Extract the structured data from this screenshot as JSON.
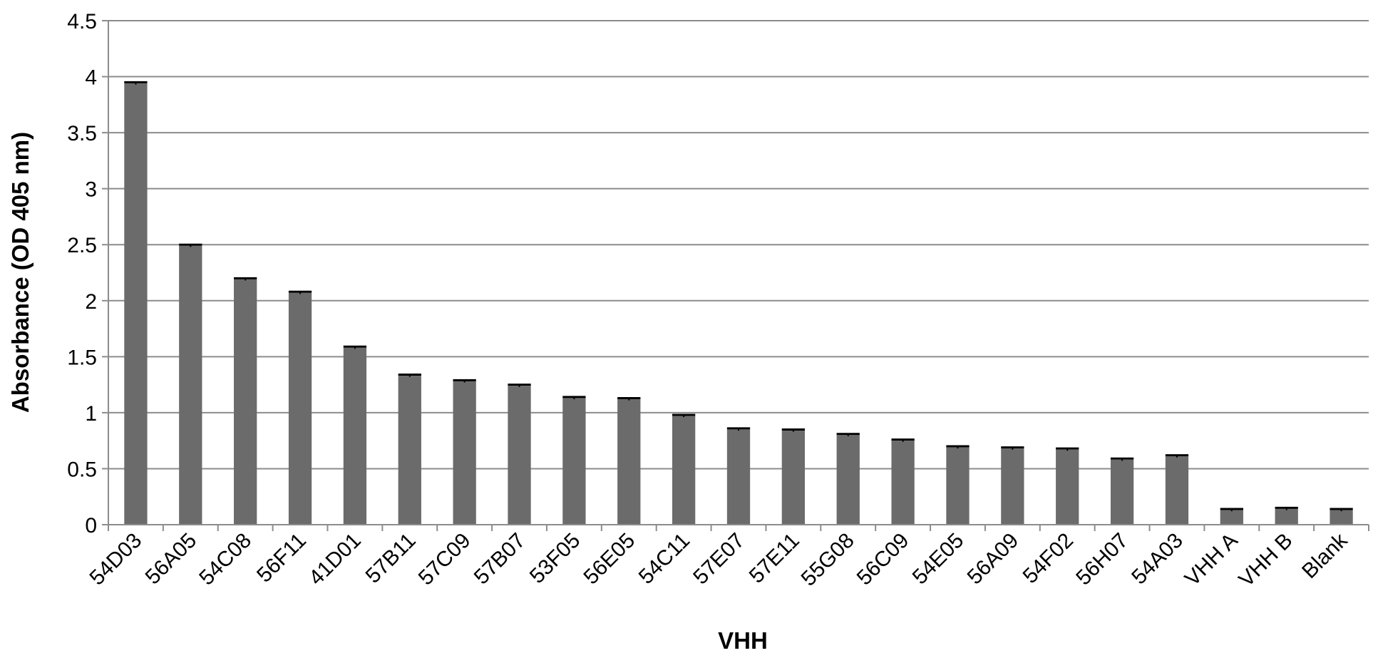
{
  "chart_data": {
    "type": "bar",
    "xlabel": "VHH",
    "ylabel": "Absorbance (OD 405 nm)",
    "ylim": [
      0,
      4.5
    ],
    "yticks": [
      "0",
      "0.5",
      "1",
      "1.5",
      "2",
      "2.5",
      "3",
      "3.5",
      "4",
      "4.5"
    ],
    "grid": true,
    "error_bars": true,
    "categories": [
      "54D03",
      "56A05",
      "54C08",
      "56F11",
      "41D01",
      "57B11",
      "57C09",
      "57B07",
      "53F05",
      "56E05",
      "54C11",
      "57E07",
      "57E11",
      "55G08",
      "56C09",
      "54E05",
      "56A09",
      "54F02",
      "56H07",
      "54A03",
      "VHH A",
      "VHH B",
      "Blank"
    ],
    "values": [
      3.94,
      2.49,
      2.19,
      2.07,
      1.58,
      1.33,
      1.28,
      1.24,
      1.13,
      1.12,
      0.97,
      0.85,
      0.84,
      0.8,
      0.75,
      0.69,
      0.68,
      0.67,
      0.58,
      0.61,
      0.13,
      0.14,
      0.13
    ],
    "errors": [
      0.01,
      0.01,
      0.01,
      0.01,
      0.01,
      0.01,
      0.01,
      0.01,
      0.01,
      0.01,
      0.01,
      0.01,
      0.01,
      0.01,
      0.01,
      0.01,
      0.01,
      0.01,
      0.01,
      0.01,
      0.01,
      0.01,
      0.01
    ],
    "colors": {
      "bar": "#6b6b6b",
      "grid": "#8c8c8c",
      "axis": "#8c8c8c",
      "error": "#000000"
    }
  }
}
